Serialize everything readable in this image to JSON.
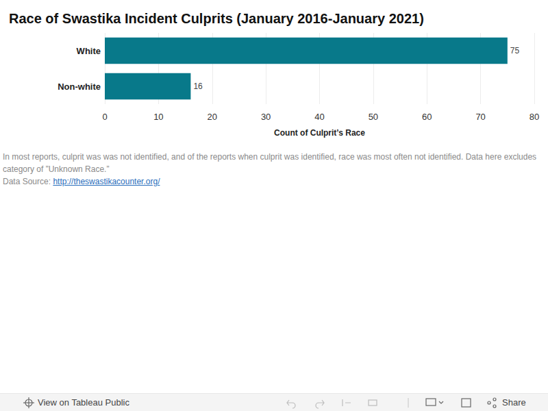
{
  "chart_data": {
    "type": "bar",
    "title": "Race of Swastika Incident Culprits (January 2016-January 2021)",
    "orientation": "horizontal",
    "categories": [
      "White",
      "Non-white"
    ],
    "values": [
      75,
      16
    ],
    "color": "#08798a",
    "x_label": "Count of Culprit’s Race",
    "xlim": [
      0,
      80
    ],
    "xticks": [
      0,
      10,
      20,
      30,
      40,
      50,
      60,
      70,
      80
    ],
    "grid": true,
    "data_labels": true
  },
  "notes": [
    "In most reports, culprit was was not identified, and of the reports when culprit was identified, race was most often not identified. Data here excludes category of ”Unknown Race.”"
  ],
  "source": {
    "label": "Data Source:",
    "url": "http://theswastikacounter.org/"
  },
  "footer": {
    "left": "View on Tableau Public",
    "right": "Share"
  }
}
